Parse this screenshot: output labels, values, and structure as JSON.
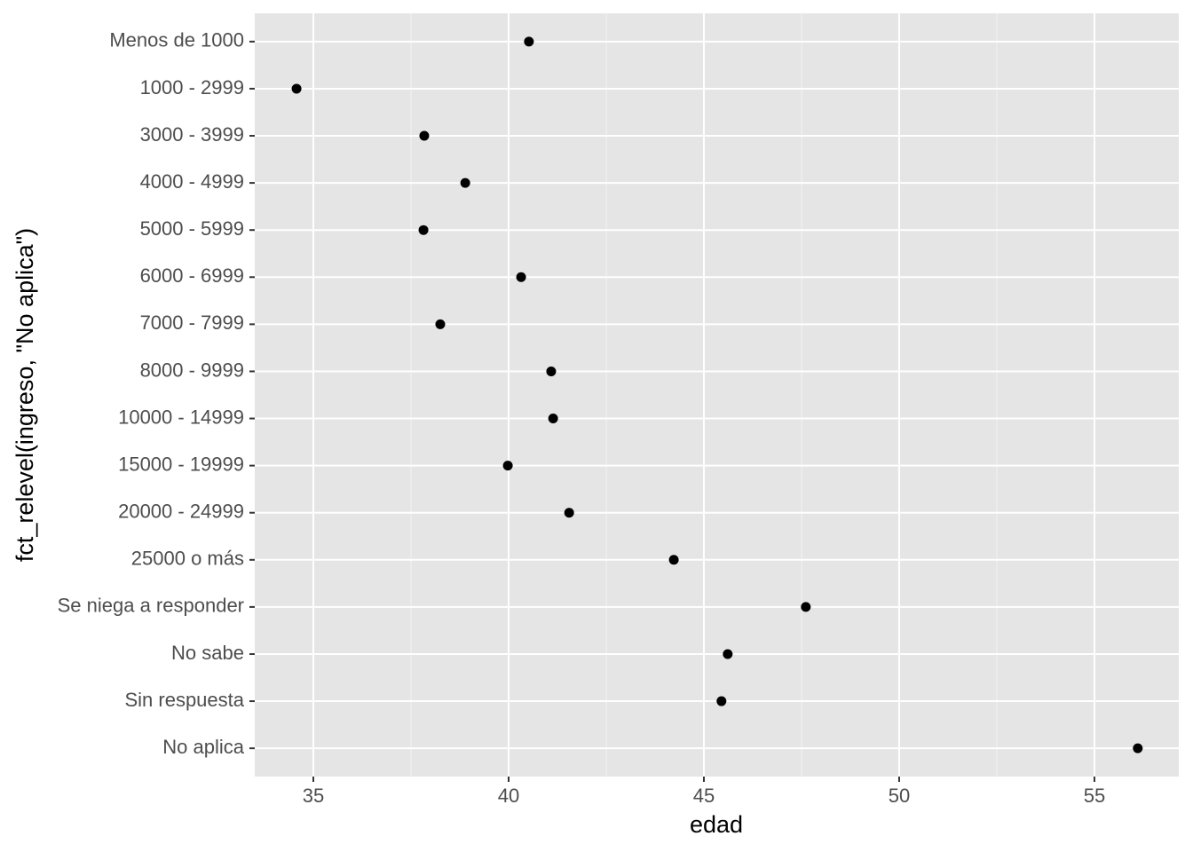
{
  "chart_data": {
    "type": "scatter",
    "x_label": "edad",
    "y_label": "fct_relevel(ingreso, \"No aplica\")",
    "categories": [
      "Menos de 1000",
      "1000 - 2999",
      "3000 - 3999",
      "4000 - 4999",
      "5000 - 5999",
      "6000 - 6999",
      "7000 - 7999",
      "8000 - 9999",
      "10000 - 14999",
      "15000 - 19999",
      "20000 - 24999",
      "25000 o más",
      "Se niega a responder",
      "No sabe",
      "Sin respuesta",
      "No aplica"
    ],
    "values": [
      40.52,
      34.57,
      37.84,
      38.89,
      37.82,
      40.32,
      38.25,
      41.09,
      41.14,
      39.98,
      41.55,
      44.23,
      47.61,
      45.61,
      45.45,
      56.11
    ],
    "color": "#000000",
    "xlim": [
      33.5,
      57.16
    ],
    "xticks": [
      35,
      40,
      45,
      50,
      55
    ],
    "grid": true
  }
}
